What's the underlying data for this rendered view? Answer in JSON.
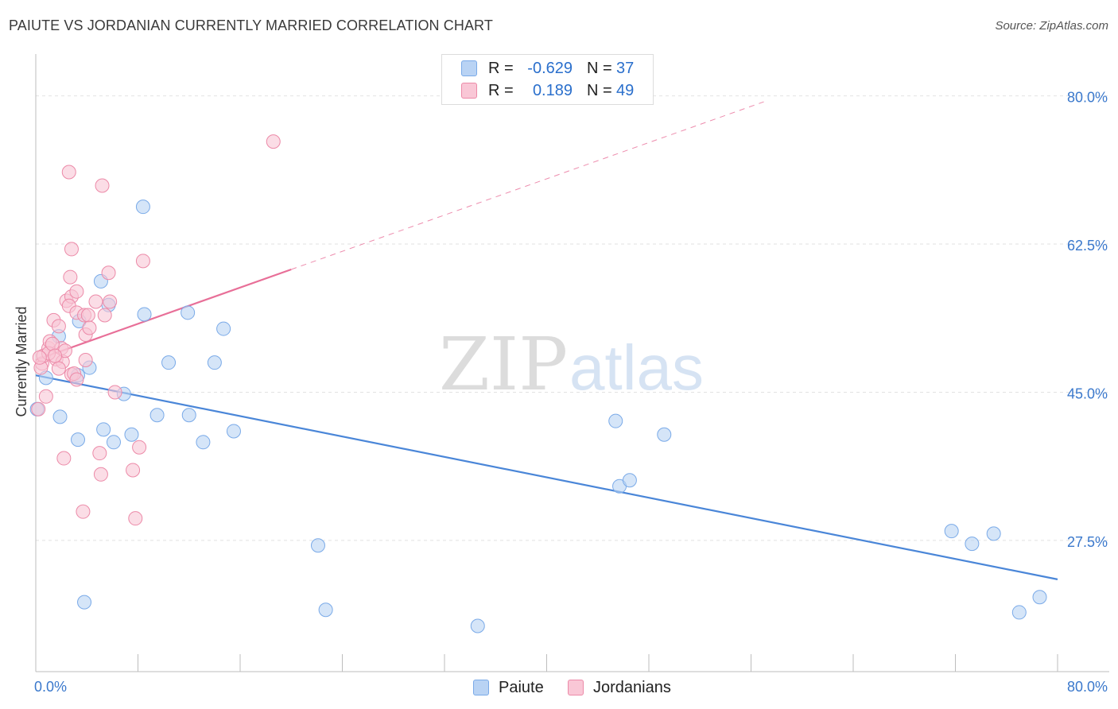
{
  "title": "PAIUTE VS JORDANIAN CURRENTLY MARRIED CORRELATION CHART",
  "source": "Source: ZipAtlas.com",
  "watermark": {
    "zip": "ZIP",
    "atlas": "atlas"
  },
  "legend": {
    "series": [
      {
        "name": "Paiute",
        "r_label": "R =",
        "r_value": "-0.629",
        "n_label": "N =",
        "n_value": "37",
        "color": "#7aaae8",
        "fill": "#b9d3f4"
      },
      {
        "name": "Jordanians",
        "r_label": "R =",
        "r_value": "0.189",
        "n_label": "N =",
        "n_value": "49",
        "color": "#ec8aa8",
        "fill": "#f9c7d6"
      }
    ]
  },
  "chart_data": {
    "type": "scatter",
    "title": "PAIUTE VS JORDANIAN CURRENTLY MARRIED CORRELATION CHART",
    "xlabel": "",
    "ylabel": "Currently Married",
    "xlim": [
      0,
      80
    ],
    "ylim": [
      12,
      84
    ],
    "x_tick_labels": [
      "0.0%",
      "80.0%"
    ],
    "y_ticks": [
      {
        "value": 27.5,
        "label": "27.5%"
      },
      {
        "value": 45.0,
        "label": "45.0%"
      },
      {
        "value": 62.5,
        "label": "62.5%"
      },
      {
        "value": 80.0,
        "label": "80.0%"
      }
    ],
    "series": [
      {
        "name": "Paiute",
        "color": "#4a86d8",
        "points": [
          [
            0.8,
            46.7
          ],
          [
            1.8,
            51.6
          ],
          [
            1.9,
            42.1
          ],
          [
            3.3,
            47.0
          ],
          [
            3.4,
            53.4
          ],
          [
            3.3,
            39.4
          ],
          [
            3.8,
            20.2
          ],
          [
            4.2,
            47.9
          ],
          [
            5.1,
            58.1
          ],
          [
            5.3,
            40.6
          ],
          [
            5.7,
            55.3
          ],
          [
            6.1,
            39.1
          ],
          [
            6.9,
            44.8
          ],
          [
            7.5,
            40.0
          ],
          [
            8.4,
            66.9
          ],
          [
            8.5,
            54.2
          ],
          [
            9.5,
            42.3
          ],
          [
            10.4,
            48.5
          ],
          [
            12.0,
            42.3
          ],
          [
            11.9,
            54.4
          ],
          [
            13.1,
            39.1
          ],
          [
            14.0,
            48.5
          ],
          [
            14.7,
            52.5
          ],
          [
            15.5,
            40.4
          ],
          [
            22.1,
            26.9
          ],
          [
            22.7,
            19.3
          ],
          [
            34.6,
            17.4
          ],
          [
            45.4,
            41.6
          ],
          [
            45.7,
            33.9
          ],
          [
            46.5,
            34.6
          ],
          [
            49.2,
            40.0
          ],
          [
            71.7,
            28.6
          ],
          [
            73.3,
            27.1
          ],
          [
            75.0,
            28.3
          ],
          [
            77.0,
            19.0
          ],
          [
            78.6,
            20.8
          ],
          [
            0.1,
            43.0
          ]
        ],
        "trend": {
          "x": [
            0,
            80
          ],
          "y": [
            47.0,
            22.9
          ]
        }
      },
      {
        "name": "Jordanians",
        "color": "#e86f98",
        "points": [
          [
            0.2,
            43.0
          ],
          [
            0.5,
            48.4
          ],
          [
            0.6,
            49.3
          ],
          [
            0.8,
            44.5
          ],
          [
            1.0,
            50.2
          ],
          [
            1.1,
            51.0
          ],
          [
            1.4,
            53.5
          ],
          [
            1.6,
            48.9
          ],
          [
            1.8,
            52.8
          ],
          [
            2.0,
            50.2
          ],
          [
            2.1,
            48.6
          ],
          [
            1.8,
            47.8
          ],
          [
            2.4,
            55.8
          ],
          [
            2.7,
            58.6
          ],
          [
            2.8,
            56.3
          ],
          [
            2.2,
            37.2
          ],
          [
            2.6,
            55.2
          ],
          [
            2.8,
            47.1
          ],
          [
            3.0,
            47.2
          ],
          [
            3.2,
            46.5
          ],
          [
            2.6,
            71.0
          ],
          [
            2.8,
            61.9
          ],
          [
            3.2,
            54.4
          ],
          [
            3.8,
            54.1
          ],
          [
            3.2,
            56.9
          ],
          [
            3.7,
            30.9
          ],
          [
            3.9,
            48.8
          ],
          [
            3.9,
            51.8
          ],
          [
            4.1,
            54.1
          ],
          [
            4.2,
            52.6
          ],
          [
            4.7,
            55.7
          ],
          [
            5.0,
            37.8
          ],
          [
            5.1,
            35.3
          ],
          [
            5.2,
            69.4
          ],
          [
            5.4,
            54.1
          ],
          [
            5.7,
            59.1
          ],
          [
            5.8,
            55.7
          ],
          [
            6.2,
            45.0
          ],
          [
            7.6,
            35.8
          ],
          [
            7.8,
            30.1
          ],
          [
            8.1,
            38.5
          ],
          [
            8.4,
            60.5
          ],
          [
            18.6,
            74.6
          ],
          [
            0.4,
            47.9
          ],
          [
            1.0,
            49.6
          ],
          [
            0.3,
            49.1
          ],
          [
            1.3,
            50.7
          ],
          [
            2.3,
            49.9
          ],
          [
            1.5,
            49.3
          ]
        ],
        "trend": {
          "x": [
            0,
            20
          ],
          "y": [
            48.8,
            59.5
          ]
        },
        "trend_extension": {
          "x": [
            20,
            57
          ],
          "y": [
            59.5,
            79.3
          ]
        }
      }
    ]
  }
}
